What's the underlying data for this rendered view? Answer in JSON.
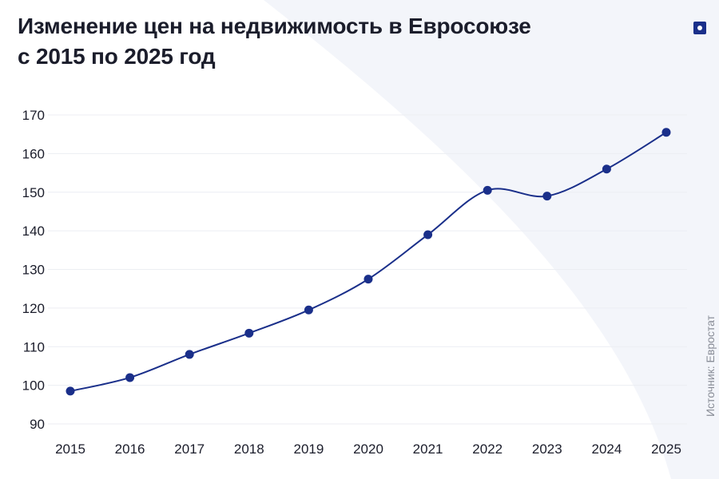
{
  "header": {
    "title_line1": "Изменение цен на недвижимость в Евросоюзе",
    "title_line2": "с 2015 по 2025 год"
  },
  "source_note": "Источник: Евростат",
  "brand": {
    "logo_icon": "square-dot-logo-icon",
    "color": "#1a2f8a"
  },
  "colors": {
    "line": "#1a2f8a",
    "point": "#1a2f8a",
    "grid": "#eceef3",
    "text": "#1b1d2b"
  },
  "chart_data": {
    "type": "line",
    "title": "Изменение цен на недвижимость в Евросоюзе с 2015 по 2025 год",
    "xlabel": "",
    "ylabel": "",
    "categories": [
      "2015",
      "2016",
      "2017",
      "2018",
      "2019",
      "2020",
      "2021",
      "2022",
      "2023",
      "2024",
      "2025"
    ],
    "series": [
      {
        "values": [
          98.5,
          102,
          108,
          113.5,
          119.5,
          127.5,
          139,
          150.5,
          149,
          156,
          165.5
        ]
      }
    ],
    "ylim": [
      90,
      170
    ],
    "yticks": [
      90,
      100,
      110,
      120,
      130,
      140,
      150,
      160,
      170
    ],
    "grid": true,
    "smooth": true,
    "markers": true
  }
}
